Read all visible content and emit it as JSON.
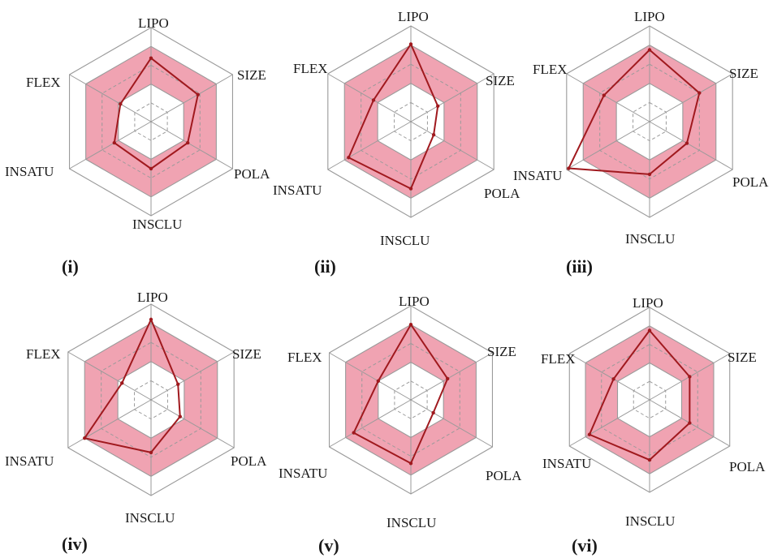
{
  "chart_data": [
    {
      "type": "radar",
      "panel_label": "(i)",
      "axes": [
        "LIPO",
        "SIZE",
        "POLA",
        "INSCLU",
        "INSATU",
        "FLEX"
      ],
      "rlim": [
        -1,
        1
      ],
      "optimal_range": [
        -0.2,
        0.6
      ],
      "values": [
        0.35,
        0.15,
        -0.1,
        0.0,
        -0.1,
        -0.25
      ],
      "colors": {
        "optimal_fill": "#f0a3b2",
        "line": "#a0191e",
        "grid": "#9a9a9a"
      }
    },
    {
      "type": "radar",
      "panel_label": "(ii)",
      "axes": [
        "LIPO",
        "SIZE",
        "POLA",
        "INSCLU",
        "INSATU",
        "FLEX"
      ],
      "rlim": [
        -1,
        1
      ],
      "optimal_range": [
        -0.2,
        0.6
      ],
      "values": [
        0.62,
        -0.35,
        -0.45,
        0.4,
        0.5,
        -0.1
      ],
      "colors": {
        "optimal_fill": "#f0a3b2",
        "line": "#a0191e",
        "grid": "#9a9a9a"
      }
    },
    {
      "type": "radar",
      "panel_label": "(iii)",
      "axes": [
        "LIPO",
        "SIZE",
        "POLA",
        "INSCLU",
        "INSATU",
        "FLEX"
      ],
      "rlim": [
        -1,
        1
      ],
      "optimal_range": [
        -0.2,
        0.6
      ],
      "values": [
        0.5,
        0.2,
        -0.1,
        0.1,
        0.95,
        0.1
      ],
      "colors": {
        "optimal_fill": "#f0a3b2",
        "line": "#a0191e",
        "grid": "#9a9a9a"
      }
    },
    {
      "type": "radar",
      "panel_label": "(iv)",
      "axes": [
        "LIPO",
        "SIZE",
        "POLA",
        "INSCLU",
        "INSATU",
        "FLEX"
      ],
      "rlim": [
        -1,
        1
      ],
      "optimal_range": [
        -0.2,
        0.6
      ],
      "values": [
        0.68,
        -0.35,
        -0.3,
        0.1,
        0.6,
        -0.3
      ],
      "colors": {
        "optimal_fill": "#f0a3b2",
        "line": "#a0191e",
        "grid": "#9a9a9a"
      }
    },
    {
      "type": "radar",
      "panel_label": "(v)",
      "axes": [
        "LIPO",
        "SIZE",
        "POLA",
        "INSCLU",
        "INSATU",
        "FLEX"
      ],
      "rlim": [
        -1,
        1
      ],
      "optimal_range": [
        -0.2,
        0.6
      ],
      "values": [
        0.6,
        -0.1,
        -0.45,
        0.35,
        0.4,
        -0.2
      ],
      "colors": {
        "optimal_fill": "#f0a3b2",
        "line": "#a0191e",
        "grid": "#9a9a9a"
      }
    },
    {
      "type": "radar",
      "panel_label": "(vi)",
      "axes": [
        "LIPO",
        "SIZE",
        "POLA",
        "INSCLU",
        "INSATU",
        "FLEX"
      ],
      "rlim": [
        -1,
        1
      ],
      "optimal_range": [
        -0.2,
        0.6
      ],
      "values": [
        0.5,
        0.0,
        0.0,
        0.3,
        0.5,
        -0.1
      ],
      "colors": {
        "optimal_fill": "#f0a3b2",
        "line": "#a0191e",
        "grid": "#9a9a9a"
      }
    }
  ]
}
